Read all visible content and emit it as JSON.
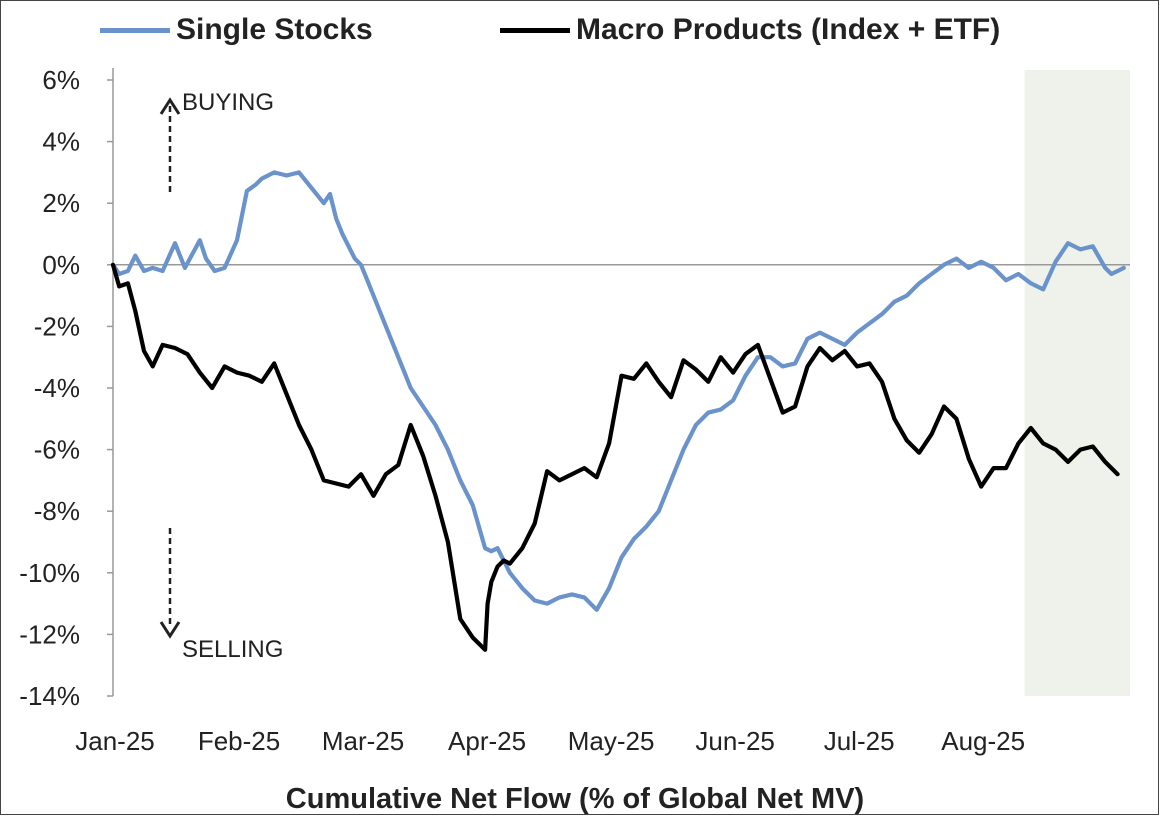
{
  "chart_data": {
    "type": "line",
    "title": "",
    "xlabel": "Cumulative Net Flow (% of Global Net MV)",
    "ylabel": "",
    "ylim": [
      -14,
      6
    ],
    "y_ticks": [
      6,
      4,
      2,
      0,
      -2,
      -4,
      -6,
      -8,
      -10,
      -12,
      -14
    ],
    "y_tick_labels": [
      "6%",
      "4%",
      "2%",
      "0%",
      "-2%",
      "-4%",
      "-6%",
      "-8%",
      "-10%",
      "-12%",
      "-14%"
    ],
    "x_ticks": [
      0,
      1,
      2,
      3,
      4,
      5,
      6,
      7
    ],
    "x_tick_labels": [
      "Jan-25",
      "Feb-25",
      "Mar-25",
      "Apr-25",
      "May-25",
      "Jun-25",
      "Jul-25",
      "Aug-25"
    ],
    "xlim": [
      0,
      8.2
    ],
    "shaded_region": [
      7.35,
      8.2
    ],
    "annotations": [
      {
        "text": "BUYING",
        "direction": "up"
      },
      {
        "text": "SELLING",
        "direction": "down"
      }
    ],
    "series": [
      {
        "name": "Single Stocks",
        "color": "#6b93cb",
        "x": [
          0,
          0.05,
          0.12,
          0.18,
          0.25,
          0.32,
          0.4,
          0.5,
          0.58,
          0.62,
          0.7,
          0.75,
          0.82,
          0.9,
          1.0,
          1.08,
          1.15,
          1.2,
          1.3,
          1.4,
          1.5,
          1.6,
          1.7,
          1.75,
          1.8,
          1.85,
          1.9,
          1.95,
          2.0,
          2.05,
          2.1,
          2.15,
          2.2,
          2.25,
          2.3,
          2.4,
          2.5,
          2.6,
          2.7,
          2.8,
          2.9,
          3.0,
          3.05,
          3.1,
          3.15,
          3.2,
          3.3,
          3.4,
          3.5,
          3.6,
          3.7,
          3.8,
          3.9,
          4.0,
          4.1,
          4.2,
          4.3,
          4.4,
          4.5,
          4.6,
          4.7,
          4.8,
          4.9,
          5.0,
          5.1,
          5.2,
          5.3,
          5.4,
          5.5,
          5.6,
          5.7,
          5.8,
          5.9,
          6.0,
          6.1,
          6.2,
          6.3,
          6.4,
          6.5,
          6.6,
          6.7,
          6.8,
          6.9,
          7.0,
          7.1,
          7.2,
          7.3,
          7.4,
          7.5,
          7.6,
          7.7,
          7.8,
          7.9,
          8.0,
          8.05,
          8.1,
          8.15
        ],
        "values": [
          0,
          -0.3,
          -0.2,
          0.3,
          -0.2,
          -0.1,
          -0.2,
          0.7,
          -0.1,
          0.2,
          0.8,
          0.2,
          -0.2,
          -0.1,
          0.8,
          2.4,
          2.6,
          2.8,
          3.0,
          2.9,
          3.0,
          2.5,
          2.0,
          2.3,
          1.5,
          1.0,
          0.6,
          0.2,
          0.0,
          -0.5,
          -1.0,
          -1.5,
          -2.0,
          -2.5,
          -3.0,
          -4.0,
          -4.6,
          -5.2,
          -6.0,
          -7.0,
          -7.8,
          -9.2,
          -9.3,
          -9.2,
          -9.6,
          -10.0,
          -10.5,
          -10.9,
          -11.0,
          -10.8,
          -10.7,
          -10.8,
          -11.2,
          -10.5,
          -9.5,
          -8.9,
          -8.5,
          -8.0,
          -7.0,
          -6.0,
          -5.2,
          -4.8,
          -4.7,
          -4.4,
          -3.6,
          -3.0,
          -3.0,
          -3.3,
          -3.2,
          -2.4,
          -2.2,
          -2.4,
          -2.6,
          -2.2,
          -1.9,
          -1.6,
          -1.2,
          -1.0,
          -0.6,
          -0.3,
          0.0,
          0.2,
          -0.1,
          0.1,
          -0.1,
          -0.5,
          -0.3,
          -0.6,
          -0.8,
          0.1,
          0.7,
          0.5,
          0.6,
          -0.1,
          -0.3,
          -0.2,
          -0.1
        ]
      },
      {
        "name": "Macro Products (Index + ETF)",
        "color": "#000000",
        "x": [
          0,
          0.05,
          0.12,
          0.18,
          0.25,
          0.32,
          0.4,
          0.5,
          0.6,
          0.7,
          0.8,
          0.9,
          1.0,
          1.1,
          1.2,
          1.3,
          1.4,
          1.5,
          1.6,
          1.7,
          1.8,
          1.9,
          2.0,
          2.1,
          2.2,
          2.3,
          2.4,
          2.5,
          2.6,
          2.7,
          2.8,
          2.9,
          2.95,
          3.0,
          3.02,
          3.05,
          3.1,
          3.15,
          3.2,
          3.3,
          3.4,
          3.5,
          3.6,
          3.7,
          3.8,
          3.9,
          4.0,
          4.1,
          4.2,
          4.3,
          4.4,
          4.5,
          4.6,
          4.7,
          4.8,
          4.9,
          5.0,
          5.1,
          5.2,
          5.3,
          5.4,
          5.5,
          5.6,
          5.7,
          5.8,
          5.9,
          6.0,
          6.1,
          6.2,
          6.3,
          6.4,
          6.5,
          6.6,
          6.7,
          6.8,
          6.9,
          7.0,
          7.1,
          7.2,
          7.3,
          7.4,
          7.5,
          7.6,
          7.7,
          7.8,
          7.9,
          8.0,
          8.1
        ],
        "values": [
          0,
          -0.7,
          -0.6,
          -1.5,
          -2.8,
          -3.3,
          -2.6,
          -2.7,
          -2.9,
          -3.5,
          -4.0,
          -3.3,
          -3.5,
          -3.6,
          -3.8,
          -3.2,
          -4.2,
          -5.2,
          -6.0,
          -7.0,
          -7.1,
          -7.2,
          -6.8,
          -7.5,
          -6.8,
          -6.5,
          -5.2,
          -6.2,
          -7.5,
          -9.0,
          -11.5,
          -12.1,
          -12.3,
          -12.5,
          -11.0,
          -10.3,
          -9.8,
          -9.6,
          -9.7,
          -9.2,
          -8.4,
          -6.7,
          -7.0,
          -6.8,
          -6.6,
          -6.9,
          -5.8,
          -3.6,
          -3.7,
          -3.2,
          -3.8,
          -4.3,
          -3.1,
          -3.4,
          -3.8,
          -3.0,
          -3.5,
          -2.9,
          -2.6,
          -3.7,
          -4.8,
          -4.6,
          -3.3,
          -2.7,
          -3.1,
          -2.8,
          -3.3,
          -3.2,
          -3.8,
          -5.0,
          -5.7,
          -6.1,
          -5.5,
          -4.6,
          -5.0,
          -6.3,
          -7.2,
          -6.6,
          -6.6,
          -5.8,
          -5.3,
          -5.8,
          -6.0,
          -6.4,
          -6.0,
          -5.9,
          -6.4,
          -6.8
        ]
      }
    ]
  }
}
